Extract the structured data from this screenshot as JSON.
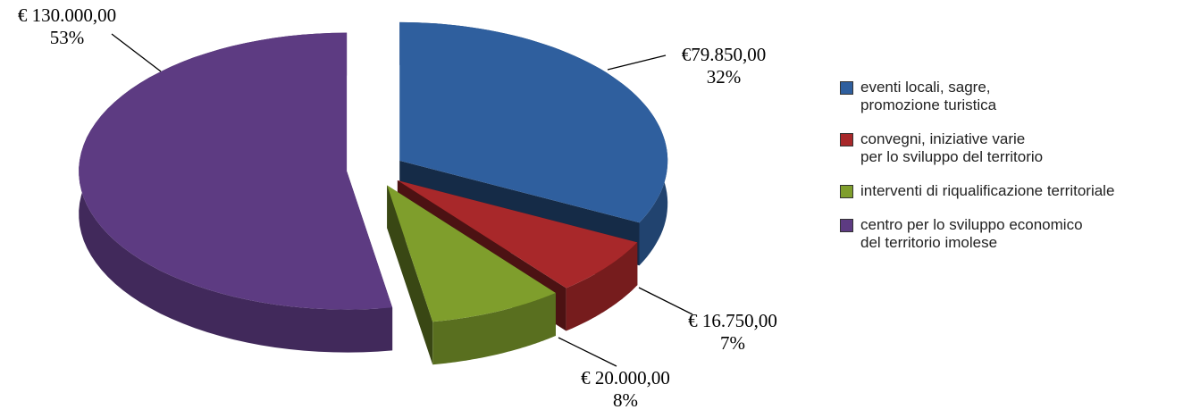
{
  "chart_data": {
    "type": "pie",
    "categories": [
      "eventi locali, sagre,\npromozione turistica",
      "convegni, iniziative varie\nper lo sviluppo del territorio",
      "interventi di riqualificazione territoriale",
      "centro per lo sviluppo economico\ndel territorio imolese"
    ],
    "values": [
      79850,
      16750,
      20000,
      130000
    ],
    "value_labels": [
      "€79.850,00",
      "€ 16.750,00",
      "€ 20.000,00",
      "€ 130.000,00"
    ],
    "percentages": [
      32,
      7,
      8,
      53
    ],
    "percentage_labels": [
      "32%",
      "7%",
      "8%",
      "53%"
    ],
    "colors": [
      "#2f5f9e",
      "#a8282a",
      "#7f9e2c",
      "#5d3b82"
    ],
    "legend": "right"
  }
}
